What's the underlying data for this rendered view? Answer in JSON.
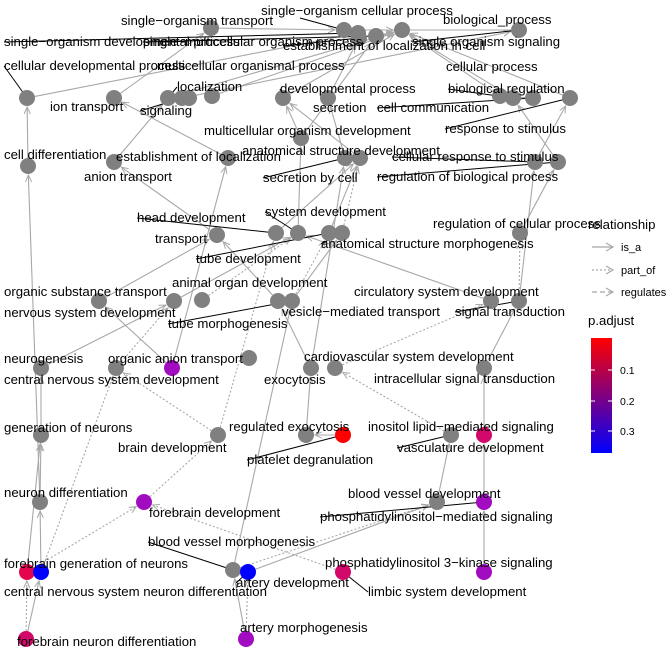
{
  "legend": {
    "relationship_title": "relationship",
    "relationships": [
      {
        "key": "is_a",
        "label": "is_a",
        "dash": "solid"
      },
      {
        "key": "part_of",
        "label": "part_of",
        "dash": "dotted"
      },
      {
        "key": "regulates",
        "label": "regulates",
        "dash": "dashed"
      }
    ],
    "padjust_title": "p.adjust",
    "padjust_ticks": [
      "0.1",
      "0.2",
      "0.3"
    ],
    "padjust_colors": [
      "#ff0000",
      "#0000ff"
    ]
  },
  "colors": {
    "unenriched": "#808080",
    "edge": "#a8a8a8"
  },
  "nodes": [
    {
      "id": "single_organism_transport",
      "label": "single−organism transport",
      "enriched": false
    },
    {
      "id": "single_organism_cellular_process",
      "label": "single−organism cellular process",
      "enriched": false
    },
    {
      "id": "biological_process",
      "label": "biological_process",
      "enriched": false
    },
    {
      "id": "single_organism_developmental_process",
      "label": "single−organism developmental process",
      "enriched": false
    },
    {
      "id": "single_multicellular_organism_process",
      "label": "single−multicellular organism process",
      "enriched": false
    },
    {
      "id": "establishment_of_localization_in_cell",
      "label": "establishment of localization in cell",
      "enriched": false
    },
    {
      "id": "single_organism_signaling",
      "label": "single organism signaling",
      "enriched": false
    },
    {
      "id": "cellular_developmental_process",
      "label": "cellular developmental process",
      "enriched": false
    },
    {
      "id": "multicellular_organismal_process",
      "label": "multicellular organismal process",
      "enriched": false
    },
    {
      "id": "cellular_process",
      "label": "cellular process",
      "enriched": false
    },
    {
      "id": "ion_transport",
      "label": "ion transport",
      "enriched": false
    },
    {
      "id": "localization",
      "label": "localization",
      "enriched": false
    },
    {
      "id": "developmental_process",
      "label": "developmental process",
      "enriched": false
    },
    {
      "id": "biological_regulation",
      "label": "biological regulation",
      "enriched": false
    },
    {
      "id": "signaling",
      "label": "signaling",
      "enriched": false
    },
    {
      "id": "secretion",
      "label": "secretion",
      "enriched": false
    },
    {
      "id": "cell_communication",
      "label": "cell communication",
      "enriched": false
    },
    {
      "id": "response_to_stimulus",
      "label": "response to stimulus",
      "enriched": false
    },
    {
      "id": "multicellular_organism_development",
      "label": "multicellular organism development",
      "enriched": false
    },
    {
      "id": "anatomical_structure_development",
      "label": "anatomical structure development",
      "enriched": false
    },
    {
      "id": "cell_differentiation",
      "label": "cell differentiation",
      "enriched": false
    },
    {
      "id": "establishment_of_localization",
      "label": "establishment of localization",
      "enriched": false
    },
    {
      "id": "cellular_response_to_stimulus",
      "label": "cellular response to stimulus",
      "enriched": false
    },
    {
      "id": "anion_transport",
      "label": "anion transport",
      "enriched": false
    },
    {
      "id": "secretion_by_cell",
      "label": "secretion by cell",
      "enriched": false
    },
    {
      "id": "regulation_of_biological_process",
      "label": "regulation of biological process",
      "enriched": false
    },
    {
      "id": "head_development",
      "label": "head development",
      "enriched": false
    },
    {
      "id": "system_development",
      "label": "system development",
      "enriched": false
    },
    {
      "id": "regulation_of_cellular_process",
      "label": "regulation of cellular process",
      "enriched": false
    },
    {
      "id": "transport",
      "label": "transport",
      "enriched": false
    },
    {
      "id": "tube_development",
      "label": "tube development",
      "enriched": false
    },
    {
      "id": "anatomical_structure_morphogenesis",
      "label": "anatomical structure morphogenesis",
      "enriched": false
    },
    {
      "id": "animal_organ_development",
      "label": "animal organ development",
      "enriched": false
    },
    {
      "id": "organic_substance_transport",
      "label": "organic substance transport",
      "enriched": false
    },
    {
      "id": "circulatory_system_development",
      "label": "circulatory system development",
      "enriched": false
    },
    {
      "id": "nervous_system_development",
      "label": "nervous system development",
      "enriched": false
    },
    {
      "id": "vesicle_mediated_transport",
      "label": "vesicle−mediated transport",
      "enriched": false
    },
    {
      "id": "signal_transduction",
      "label": "signal transduction",
      "enriched": false
    },
    {
      "id": "tube_morphogenesis",
      "label": "tube morphogenesis",
      "enriched": false
    },
    {
      "id": "neurogenesis",
      "label": "neurogenesis",
      "enriched": false
    },
    {
      "id": "organic_anion_transport",
      "label": "organic anion transport",
      "enriched": true,
      "color": "#a20cc0"
    },
    {
      "id": "cardiovascular_system_development",
      "label": "cardiovascular system development",
      "enriched": false
    },
    {
      "id": "central_nervous_system_development",
      "label": "central nervous system development",
      "enriched": false
    },
    {
      "id": "exocytosis",
      "label": "exocytosis",
      "enriched": false
    },
    {
      "id": "intracellular_signal_transduction",
      "label": "intracellular signal transduction",
      "enriched": false
    },
    {
      "id": "generation_of_neurons",
      "label": "generation of neurons",
      "enriched": false
    },
    {
      "id": "regulated_exocytosis",
      "label": "regulated exocytosis",
      "enriched": false
    },
    {
      "id": "inositol_lipid_mediated_signaling",
      "label": "inositol lipid−mediated signaling",
      "enriched": true,
      "color": "#d2086a"
    },
    {
      "id": "brain_development",
      "label": "brain development",
      "enriched": false
    },
    {
      "id": "platelet_degranulation",
      "label": "platelet degranulation",
      "enriched": true,
      "color": "#ff0000"
    },
    {
      "id": "vasculature_development",
      "label": "vasculature development",
      "enriched": false
    },
    {
      "id": "neuron_differentiation",
      "label": "neuron differentiation",
      "enriched": false
    },
    {
      "id": "blood_vessel_development",
      "label": "blood vessel development",
      "enriched": false
    },
    {
      "id": "forebrain_development",
      "label": "forebrain development",
      "enriched": true,
      "color": "#a20cc0"
    },
    {
      "id": "phosphatidylinositol_mediated_signaling",
      "label": "phosphatidylinositol−mediated signaling",
      "enriched": true,
      "color": "#a20cc0"
    },
    {
      "id": "blood_vessel_morphogenesis",
      "label": "blood vessel morphogenesis",
      "enriched": false
    },
    {
      "id": "forebrain_generation_of_neurons",
      "label": "forebrain generation of neurons",
      "enriched": true,
      "color": "#e4064c"
    },
    {
      "id": "phosphatidylinositol_3_kinase_signaling",
      "label": "phosphatidylinositol 3−kinase signaling",
      "enriched": true,
      "color": "#a20cc0"
    },
    {
      "id": "central_nervous_system_neuron_differentiation",
      "label": "central nervous system neuron differentiation",
      "enriched": true,
      "color": "#0000ff"
    },
    {
      "id": "artery_development",
      "label": "artery development",
      "enriched": true,
      "color": "#0000ff"
    },
    {
      "id": "limbic_system_development",
      "label": "limbic system development",
      "enriched": true,
      "color": "#d2086a"
    },
    {
      "id": "forebrain_neuron_differentiation",
      "label": "forebrain neuron differentiation",
      "enriched": true,
      "color": "#d2086a"
    },
    {
      "id": "artery_morphogenesis",
      "label": "artery morphogenesis",
      "enriched": true,
      "color": "#a20cc0"
    },
    {
      "id": "unlabeled_node_1",
      "label": "",
      "enriched": false
    },
    {
      "id": "unlabeled_node_2",
      "label": "",
      "enriched": false
    }
  ],
  "edges": [
    [
      "single_organism_cellular_process",
      "biological_process",
      "is_a"
    ],
    [
      "single_organism_transport",
      "single_organism_cellular_process",
      "is_a"
    ],
    [
      "single_organism_developmental_process",
      "single_organism_cellular_process",
      "is_a"
    ],
    [
      "single_multicellular_organism_process",
      "biological_process",
      "is_a"
    ],
    [
      "establishment_of_localization_in_cell",
      "single_organism_cellular_process",
      "is_a"
    ],
    [
      "single_organism_signaling",
      "single_organism_cellular_process",
      "is_a"
    ],
    [
      "cellular_developmental_process",
      "single_organism_developmental_process",
      "is_a"
    ],
    [
      "multicellular_organismal_process",
      "biological_process",
      "is_a"
    ],
    [
      "cellular_process",
      "biological_process",
      "is_a"
    ],
    [
      "ion_transport",
      "single_organism_transport",
      "is_a"
    ],
    [
      "localization",
      "biological_process",
      "is_a"
    ],
    [
      "developmental_process",
      "biological_process",
      "is_a"
    ],
    [
      "biological_regulation",
      "biological_process",
      "is_a"
    ],
    [
      "signaling",
      "single_organism_signaling",
      "is_a"
    ],
    [
      "secretion",
      "establishment_of_localization_in_cell",
      "is_a"
    ],
    [
      "cell_communication",
      "cellular_process",
      "is_a"
    ],
    [
      "response_to_stimulus",
      "biological_process",
      "is_a"
    ],
    [
      "multicellular_organism_development",
      "developmental_process",
      "is_a"
    ],
    [
      "multicellular_organism_development",
      "single_multicellular_organism_process",
      "is_a"
    ],
    [
      "anatomical_structure_development",
      "developmental_process",
      "is_a"
    ],
    [
      "cell_differentiation",
      "cellular_developmental_process",
      "is_a"
    ],
    [
      "establishment_of_localization",
      "localization",
      "is_a"
    ],
    [
      "cellular_response_to_stimulus",
      "response_to_stimulus",
      "is_a"
    ],
    [
      "anion_transport",
      "ion_transport",
      "is_a"
    ],
    [
      "secretion_by_cell",
      "secretion",
      "is_a"
    ],
    [
      "regulation_of_biological_process",
      "biological_regulation",
      "is_a"
    ],
    [
      "head_development",
      "anatomical_structure_development",
      "is_a"
    ],
    [
      "system_development",
      "multicellular_organism_development",
      "is_a"
    ],
    [
      "regulation_of_cellular_process",
      "regulation_of_biological_process",
      "is_a"
    ],
    [
      "transport",
      "establishment_of_localization",
      "is_a"
    ],
    [
      "tube_development",
      "anatomical_structure_development",
      "is_a"
    ],
    [
      "anatomical_structure_morphogenesis",
      "anatomical_structure_development",
      "part_of"
    ],
    [
      "animal_organ_development",
      "system_development",
      "part_of"
    ],
    [
      "organic_substance_transport",
      "transport",
      "is_a"
    ],
    [
      "circulatory_system_development",
      "system_development",
      "is_a"
    ],
    [
      "nervous_system_development",
      "system_development",
      "is_a"
    ],
    [
      "vesicle_mediated_transport",
      "transport",
      "is_a"
    ],
    [
      "signal_transduction",
      "cellular_response_to_stimulus",
      "is_a"
    ],
    [
      "signal_transduction",
      "regulation_of_cellular_process",
      "part_of"
    ],
    [
      "tube_morphogenesis",
      "tube_development",
      "part_of"
    ],
    [
      "tube_morphogenesis",
      "anatomical_structure_morphogenesis",
      "is_a"
    ],
    [
      "neurogenesis",
      "nervous_system_development",
      "is_a"
    ],
    [
      "organic_anion_transport",
      "anion_transport",
      "is_a"
    ],
    [
      "organic_anion_transport",
      "organic_substance_transport",
      "is_a"
    ],
    [
      "cardiovascular_system_development",
      "circulatory_system_development",
      "part_of"
    ],
    [
      "central_nervous_system_development",
      "nervous_system_development",
      "part_of"
    ],
    [
      "exocytosis",
      "vesicle_mediated_transport",
      "is_a"
    ],
    [
      "exocytosis",
      "secretion_by_cell",
      "is_a"
    ],
    [
      "intracellular_signal_transduction",
      "signal_transduction",
      "is_a"
    ],
    [
      "generation_of_neurons",
      "neurogenesis",
      "is_a"
    ],
    [
      "regulated_exocytosis",
      "exocytosis",
      "is_a"
    ],
    [
      "inositol_lipid_mediated_signaling",
      "intracellular_signal_transduction",
      "is_a"
    ],
    [
      "brain_development",
      "central_nervous_system_development",
      "part_of"
    ],
    [
      "brain_development",
      "head_development",
      "part_of"
    ],
    [
      "platelet_degranulation",
      "regulated_exocytosis",
      "is_a"
    ],
    [
      "vasculature_development",
      "cardiovascular_system_development",
      "part_of"
    ],
    [
      "neuron_differentiation",
      "generation_of_neurons",
      "is_a"
    ],
    [
      "neuron_differentiation",
      "cell_differentiation",
      "is_a"
    ],
    [
      "blood_vessel_development",
      "vasculature_development",
      "is_a"
    ],
    [
      "forebrain_development",
      "brain_development",
      "part_of"
    ],
    [
      "phosphatidylinositol_mediated_signaling",
      "inositol_lipid_mediated_signaling",
      "is_a"
    ],
    [
      "blood_vessel_morphogenesis",
      "blood_vessel_development",
      "part_of"
    ],
    [
      "blood_vessel_morphogenesis",
      "tube_morphogenesis",
      "is_a"
    ],
    [
      "forebrain_generation_of_neurons",
      "generation_of_neurons",
      "is_a"
    ],
    [
      "forebrain_generation_of_neurons",
      "forebrain_development",
      "part_of"
    ],
    [
      "phosphatidylinositol_3_kinase_signaling",
      "phosphatidylinositol_mediated_signaling",
      "is_a"
    ],
    [
      "central_nervous_system_neuron_differentiation",
      "neuron_differentiation",
      "is_a"
    ],
    [
      "central_nervous_system_neuron_differentiation",
      "central_nervous_system_development",
      "part_of"
    ],
    [
      "artery_development",
      "blood_vessel_development",
      "is_a"
    ],
    [
      "limbic_system_development",
      "forebrain_development",
      "part_of"
    ],
    [
      "forebrain_neuron_differentiation",
      "central_nervous_system_neuron_differentiation",
      "is_a"
    ],
    [
      "forebrain_neuron_differentiation",
      "forebrain_generation_of_neurons",
      "part_of"
    ],
    [
      "artery_morphogenesis",
      "artery_development",
      "part_of"
    ],
    [
      "artery_morphogenesis",
      "blood_vessel_morphogenesis",
      "is_a"
    ]
  ]
}
